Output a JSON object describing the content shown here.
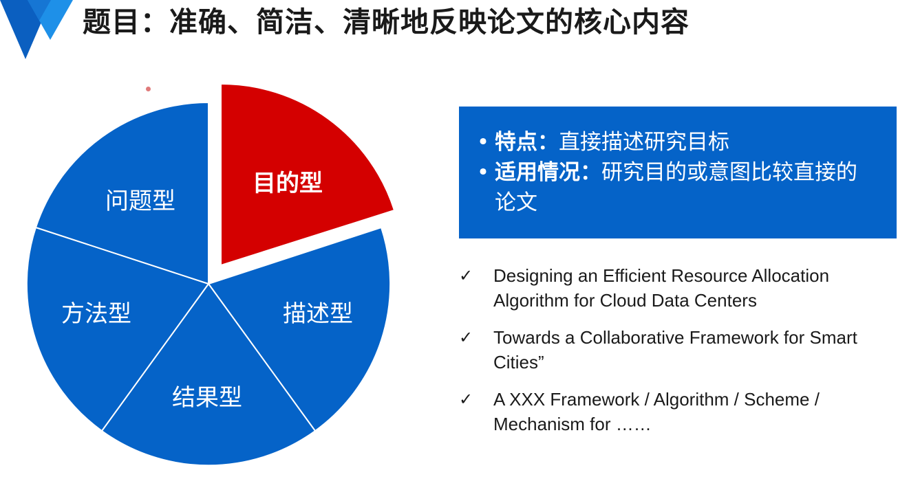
{
  "title": "题目：准确、简洁、清晰地反映论文的核心内容",
  "colors": {
    "accent_blue": "#0563c8",
    "highlight_red": "#d40000",
    "logo_blue": "#1e90e8",
    "logo_dark_blue": "#0b5fc0"
  },
  "icons": {
    "logo": "triangle-logo-icon",
    "bullet": "bullet-dot",
    "check": "check-icon"
  },
  "pie": {
    "slices": [
      {
        "label": "目的型",
        "highlighted": true
      },
      {
        "label": "描述型",
        "highlighted": false
      },
      {
        "label": "结果型",
        "highlighted": false
      },
      {
        "label": "方法型",
        "highlighted": false
      },
      {
        "label": "问题型",
        "highlighted": false
      }
    ]
  },
  "info": {
    "bullet": "•",
    "items": [
      {
        "key": "特点：",
        "value": "直接描述研究目标"
      },
      {
        "key": "适用情况：",
        "value": "研究目的或意图比较直接的论文"
      }
    ]
  },
  "examples": {
    "check_glyph": "✓",
    "items": [
      "Designing an Efficient Resource Allocation Algorithm for Cloud Data Centers",
      "Towards a Collaborative Framework for Smart Cities”",
      "A XXX Framework / Algorithm / Scheme / Mechanism for ……"
    ]
  }
}
